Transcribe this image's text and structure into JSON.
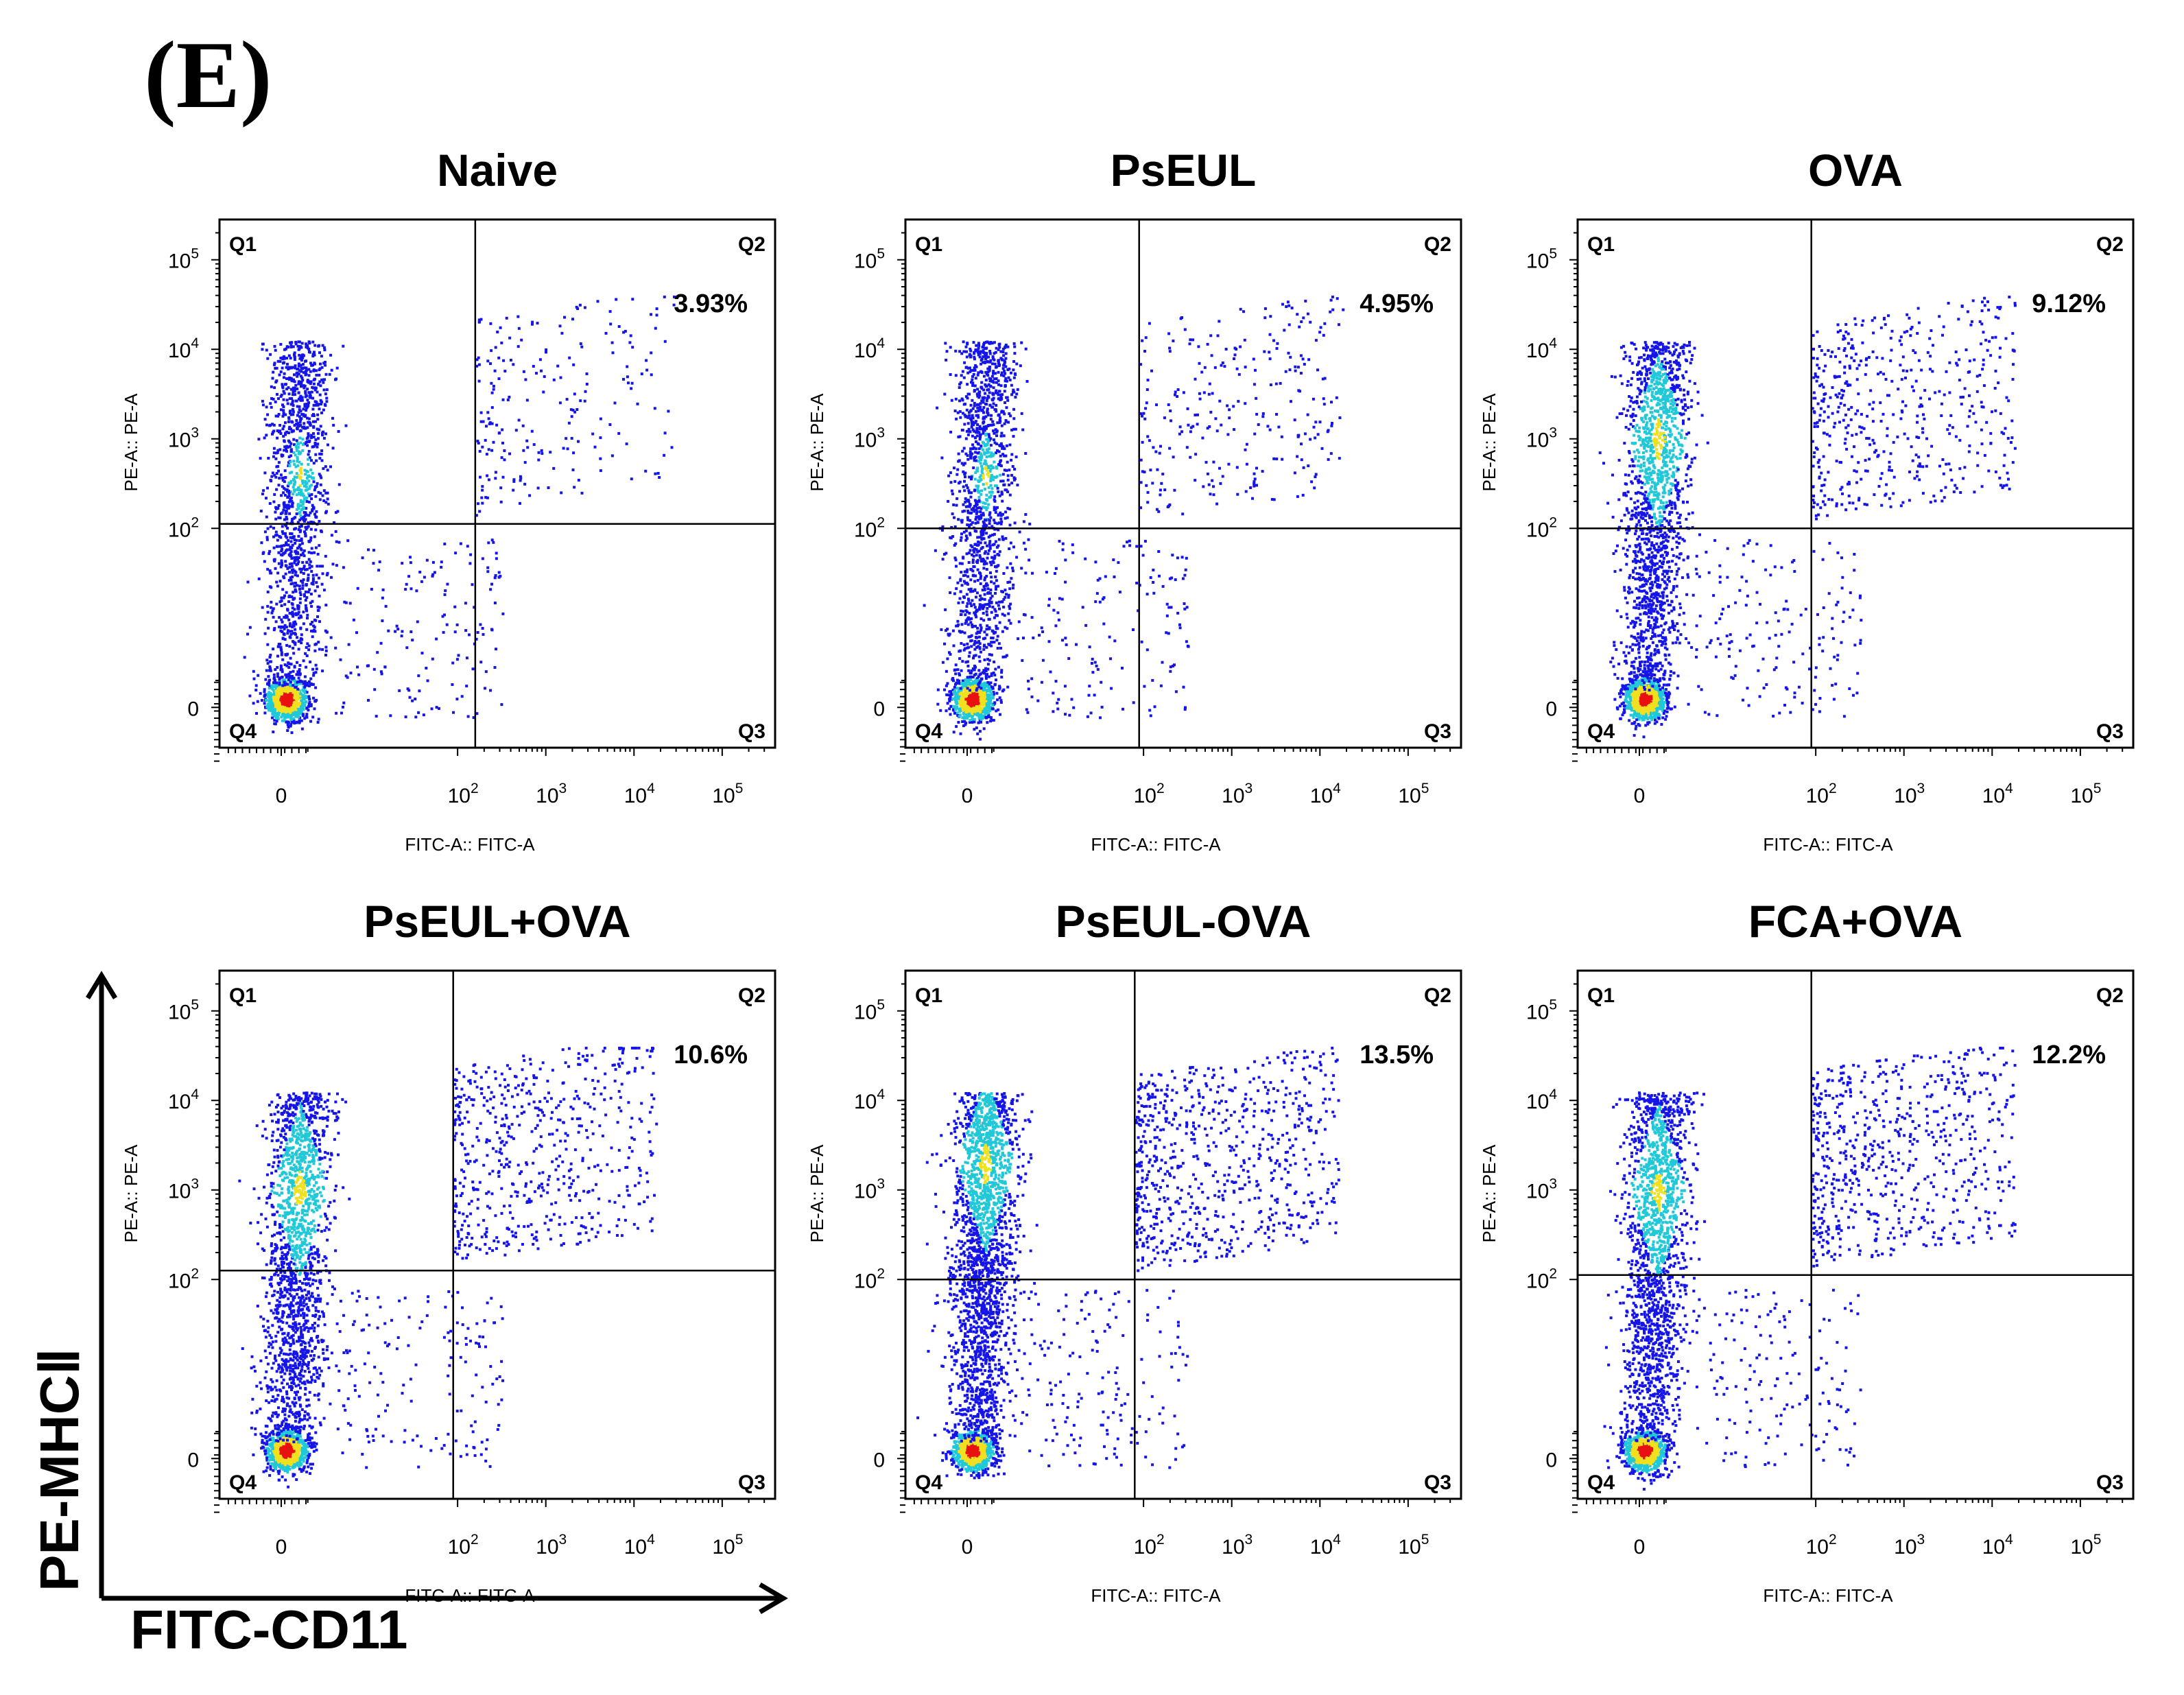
{
  "panel_label": "(E)",
  "global_axes": {
    "x_label": "FITC-CD11",
    "y_label": "PE-MHCⅡ"
  },
  "colors": {
    "axis": "#000000",
    "density_low": "#1515e8",
    "density_mid": "#20c8d8",
    "density_high": "#f0e020",
    "density_peak": "#e81010"
  },
  "chart_data": [
    {
      "type": "scatter",
      "subtype": "flow-cytometry-density",
      "title": "Naive",
      "xlabel": "FITC-A:: FITC-A",
      "ylabel": "PE-A:: PE-A",
      "x_ticks": [
        "0",
        "10^2",
        "10^3",
        "10^4",
        "10^5"
      ],
      "y_ticks": [
        "0",
        "10^2",
        "10^3",
        "10^4",
        "10^5"
      ],
      "x_gate": "2.2",
      "y_gate": "2.05",
      "quadrants": {
        "Q1": "Q1",
        "Q2": "Q2",
        "Q3": "Q3",
        "Q4": "Q4"
      },
      "q2_percent": "3.93%",
      "high_cluster": "low"
    },
    {
      "type": "scatter",
      "subtype": "flow-cytometry-density",
      "title": "PsEUL",
      "xlabel": "FITC-A:: FITC-A",
      "ylabel": "PE-A:: PE-A",
      "x_ticks": [
        "0",
        "10^2",
        "10^3",
        "10^4",
        "10^5"
      ],
      "y_ticks": [
        "0",
        "10^2",
        "10^3",
        "10^4",
        "10^5"
      ],
      "x_gate": "1.95",
      "y_gate": "2.0",
      "quadrants": {
        "Q1": "Q1",
        "Q2": "Q2",
        "Q3": "Q3",
        "Q4": "Q4"
      },
      "q2_percent": "4.95%",
      "high_cluster": "low"
    },
    {
      "type": "scatter",
      "subtype": "flow-cytometry-density",
      "title": "OVA",
      "xlabel": "FITC-A:: FITC-A",
      "ylabel": "PE-A:: PE-A",
      "x_ticks": [
        "0",
        "10^2",
        "10^3",
        "10^4",
        "10^5"
      ],
      "y_ticks": [
        "0",
        "10^2",
        "10^3",
        "10^4",
        "10^5"
      ],
      "x_gate": "1.95",
      "y_gate": "2.0",
      "quadrants": {
        "Q1": "Q1",
        "Q2": "Q2",
        "Q3": "Q3",
        "Q4": "Q4"
      },
      "q2_percent": "9.12%",
      "high_cluster": "mid"
    },
    {
      "type": "scatter",
      "subtype": "flow-cytometry-density",
      "title": "PsEUL+OVA",
      "xlabel": "FITC-A:: FITC-A",
      "ylabel": "PE-A:: PE-A",
      "x_ticks": [
        "0",
        "10^2",
        "10^3",
        "10^4",
        "10^5"
      ],
      "y_ticks": [
        "0",
        "10^2",
        "10^3",
        "10^4",
        "10^5"
      ],
      "x_gate": "1.95",
      "y_gate": "2.1",
      "quadrants": {
        "Q1": "Q1",
        "Q2": "Q2",
        "Q3": "Q3",
        "Q4": "Q4"
      },
      "q2_percent": "10.6%",
      "high_cluster": "mid"
    },
    {
      "type": "scatter",
      "subtype": "flow-cytometry-density",
      "title": "PsEUL-OVA",
      "xlabel": "FITC-A:: FITC-A",
      "ylabel": "PE-A:: PE-A",
      "x_ticks": [
        "0",
        "10^2",
        "10^3",
        "10^4",
        "10^5"
      ],
      "y_ticks": [
        "0",
        "10^2",
        "10^3",
        "10^4",
        "10^5"
      ],
      "x_gate": "1.9",
      "y_gate": "2.0",
      "quadrants": {
        "Q1": "Q1",
        "Q2": "Q2",
        "Q3": "Q3",
        "Q4": "Q4"
      },
      "q2_percent": "13.5%",
      "high_cluster": "high"
    },
    {
      "type": "scatter",
      "subtype": "flow-cytometry-density",
      "title": "FCA+OVA",
      "xlabel": "FITC-A:: FITC-A",
      "ylabel": "PE-A:: PE-A",
      "x_ticks": [
        "0",
        "10^2",
        "10^3",
        "10^4",
        "10^5"
      ],
      "y_ticks": [
        "0",
        "10^2",
        "10^3",
        "10^4",
        "10^5"
      ],
      "x_gate": "1.95",
      "y_gate": "2.05",
      "quadrants": {
        "Q1": "Q1",
        "Q2": "Q2",
        "Q3": "Q3",
        "Q4": "Q4"
      },
      "q2_percent": "12.2%",
      "high_cluster": "mid"
    }
  ]
}
